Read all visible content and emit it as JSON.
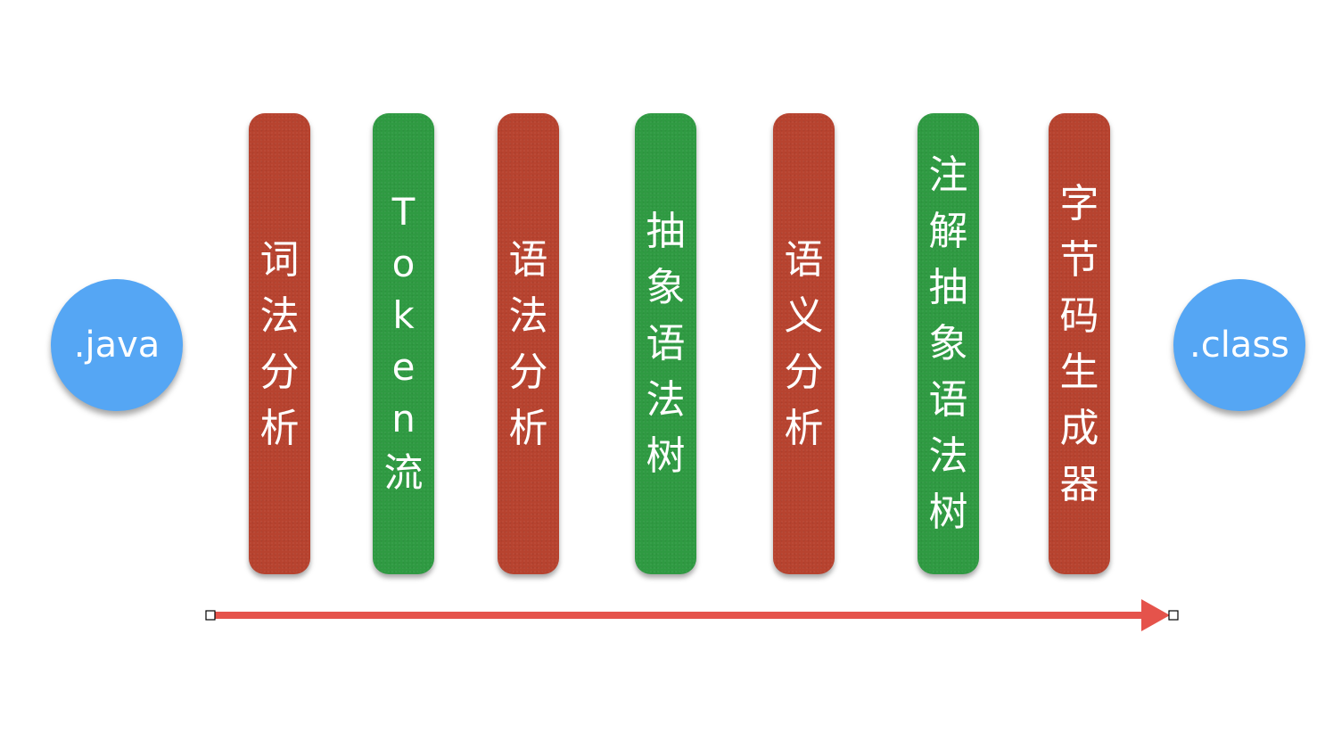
{
  "source_node": {
    "label": ".java"
  },
  "target_node": {
    "label": ".class"
  },
  "stages": [
    {
      "text": "词法分析",
      "kind": "process",
      "color": "#b7432f"
    },
    {
      "text": "Token流",
      "kind": "product",
      "color": "#2f9a42"
    },
    {
      "text": "语法分析",
      "kind": "process",
      "color": "#b7432f"
    },
    {
      "text": "抽象语法树",
      "kind": "product",
      "color": "#2f9a42"
    },
    {
      "text": "语义分析",
      "kind": "process",
      "color": "#b7432f"
    },
    {
      "text": "注解抽象语法树",
      "kind": "product",
      "color": "#2f9a42"
    },
    {
      "text": "字节码生成器",
      "kind": "process",
      "color": "#b7432f"
    }
  ],
  "colors": {
    "node": "#55a6f4",
    "arrow": "#e5534b"
  },
  "icons": {
    "arrow": "right-arrow-icon"
  }
}
